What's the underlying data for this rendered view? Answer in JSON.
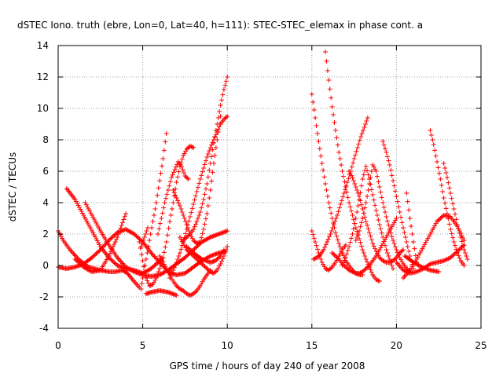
{
  "chart_data": {
    "type": "scatter",
    "title": "dSTEC Iono. truth (ebre, Lon=0, Lat=40, h=111): STEC-STEC_elemax in phase cont. a",
    "xlabel": "GPS time / hours of day 240 of year 2008",
    "ylabel": "dSTEC  / TECUs",
    "xlim": [
      0,
      25
    ],
    "ylim": [
      -4,
      14
    ],
    "xticks": [
      0,
      5,
      10,
      15,
      20,
      25
    ],
    "yticks": [
      -4,
      -2,
      0,
      2,
      4,
      6,
      8,
      10,
      12,
      14
    ],
    "grid": true,
    "marker": "plus",
    "color": "#ff0000",
    "series": [
      {
        "x": [
          0.0,
          0.3,
          0.7,
          1.2,
          1.8,
          2.5,
          3.0,
          3.4,
          3.8,
          4.1,
          4.4,
          4.8
        ],
        "y": [
          2.2,
          1.6,
          1.0,
          0.4,
          -0.1,
          -0.3,
          -0.4,
          -0.4,
          -0.3,
          -0.5,
          -0.9,
          -1.4
        ]
      },
      {
        "x": [
          0.0,
          0.5,
          1.0,
          1.5,
          2.0,
          2.5,
          3.0,
          3.5,
          4.0,
          4.5,
          5.0,
          5.5,
          6.0,
          6.5,
          7.0,
          7.5,
          8.0,
          8.5,
          9.0,
          9.5,
          9.9
        ],
        "y": [
          -0.1,
          -0.2,
          -0.1,
          0.1,
          0.5,
          1.0,
          1.6,
          2.1,
          2.3,
          2.0,
          1.5,
          0.8,
          0.2,
          -0.4,
          -0.6,
          -0.5,
          -0.1,
          0.3,
          0.6,
          0.8,
          0.9
        ]
      },
      {
        "x": [
          0.5,
          1.0,
          1.5,
          2.0,
          2.5,
          3.0,
          3.5,
          4.0,
          4.5,
          5.0,
          5.5,
          6.0,
          6.2
        ],
        "y": [
          4.9,
          4.2,
          3.2,
          2.2,
          1.2,
          0.5,
          0.0,
          -0.2,
          -0.3,
          -0.5,
          -0.2,
          0.3,
          0.5
        ]
      },
      {
        "x": [
          1.6,
          2.0,
          2.5,
          3.0,
          3.5,
          4.0,
          4.5,
          5.0,
          5.5,
          6.0,
          6.5,
          7.0,
          7.5,
          8.0,
          8.5,
          9.0,
          9.5,
          10.0
        ],
        "y": [
          4.0,
          3.2,
          2.2,
          1.3,
          0.5,
          -0.1,
          -0.4,
          -0.6,
          -0.7,
          -0.6,
          -0.3,
          0.1,
          0.5,
          1.0,
          1.5,
          1.8,
          2.0,
          2.2
        ]
      },
      {
        "x": [
          1.0,
          1.5,
          2.0,
          2.5,
          3.0,
          3.5,
          4.0
        ],
        "y": [
          0.4,
          -0.1,
          -0.4,
          -0.3,
          0.6,
          1.8,
          3.3
        ]
      },
      {
        "x": [
          4.8,
          5.0,
          5.2,
          5.4,
          5.6,
          5.8,
          6.0,
          6.2,
          6.4,
          6.6,
          6.8,
          7.0,
          7.2,
          7.4,
          7.6,
          7.8,
          8.0
        ],
        "y": [
          1.5,
          0.3,
          -0.8,
          -1.3,
          -1.2,
          -0.8,
          -0.2,
          0.5,
          1.5,
          2.8,
          4.0,
          5.3,
          6.3,
          7.0,
          7.4,
          7.6,
          7.5
        ]
      },
      {
        "x": [
          4.9,
          5.0,
          5.2,
          5.4,
          5.6,
          5.8,
          6.0,
          6.2,
          6.4
        ],
        "y": [
          -1.5,
          -0.8,
          0.4,
          1.6,
          2.8,
          4.0,
          5.4,
          6.8,
          8.4
        ]
      },
      {
        "x": [
          4.9,
          5.1,
          5.3
        ],
        "y": [
          1.2,
          1.8,
          2.4
        ]
      },
      {
        "x": [
          5.2,
          5.5,
          6.0,
          6.5,
          7.0
        ],
        "y": [
          -1.8,
          -1.7,
          -1.6,
          -1.7,
          -1.9
        ]
      },
      {
        "x": [
          5.9,
          6.1,
          6.3,
          6.5,
          6.7,
          6.9,
          7.1,
          7.3,
          7.5,
          7.7
        ],
        "y": [
          2.0,
          3.0,
          4.0,
          4.8,
          5.6,
          6.1,
          6.6,
          6.3,
          5.7,
          5.5
        ]
      },
      {
        "x": [
          6.0,
          6.2,
          6.4,
          6.6,
          6.8,
          7.0,
          7.2,
          7.4,
          7.6,
          7.8,
          8.0,
          8.2,
          8.4,
          8.6,
          8.8,
          9.0
        ],
        "y": [
          0.6,
          0.2,
          -0.2,
          -0.6,
          -1.0,
          -1.3,
          -1.5,
          -1.6,
          -1.8,
          -1.9,
          -1.8,
          -1.6,
          -1.3,
          -0.9,
          -0.6,
          -0.3
        ]
      },
      {
        "x": [
          6.6,
          6.8,
          7.0,
          7.2,
          7.4,
          7.6,
          7.8,
          8.0,
          8.2,
          8.4,
          8.6,
          8.8,
          9.0,
          9.2,
          9.4,
          9.6,
          9.8,
          10.0
        ],
        "y": [
          -0.8,
          -0.3,
          0.2,
          0.8,
          1.5,
          2.3,
          3.1,
          3.9,
          4.7,
          5.5,
          6.2,
          6.9,
          7.5,
          8.0,
          8.5,
          9.0,
          9.3,
          9.5
        ]
      },
      {
        "x": [
          6.8,
          7.0,
          7.2,
          7.4,
          7.6,
          7.8,
          8.0,
          8.2,
          8.4,
          8.6,
          8.8,
          9.0,
          9.2,
          9.4,
          9.6
        ],
        "y": [
          4.8,
          4.3,
          3.8,
          3.2,
          2.6,
          2.0,
          1.6,
          1.4,
          1.5,
          2.3,
          3.3,
          4.8,
          6.5,
          8.0,
          9.5
        ]
      },
      {
        "x": [
          7.2,
          7.4,
          7.6,
          7.8,
          8.0,
          8.2,
          8.4,
          8.6,
          8.8,
          9.0,
          9.2,
          9.4,
          9.6,
          9.8,
          10.0
        ],
        "y": [
          1.8,
          1.4,
          1.0,
          0.8,
          0.6,
          0.4,
          0.2,
          0.0,
          -0.2,
          -0.4,
          -0.5,
          -0.3,
          0.1,
          0.6,
          1.2
        ]
      },
      {
        "x": [
          7.4,
          7.6,
          7.8,
          8.0,
          8.2,
          8.4,
          8.6,
          8.8,
          9.0,
          9.2,
          9.4,
          9.6,
          9.8,
          10.0
        ],
        "y": [
          1.6,
          1.8,
          2.0,
          2.3,
          2.8,
          3.4,
          4.2,
          5.2,
          6.5,
          7.8,
          9.0,
          10.2,
          11.2,
          12.0
        ]
      },
      {
        "x": [
          7.6,
          8.0,
          8.5,
          9.0,
          9.3,
          9.6,
          9.8
        ],
        "y": [
          1.2,
          0.8,
          0.4,
          0.2,
          0.3,
          0.6,
          1.0
        ]
      },
      {
        "x": [
          15.0,
          15.2,
          15.4,
          15.6,
          15.8,
          16.0,
          16.2,
          16.4,
          16.6,
          16.8,
          17.0,
          17.2,
          17.4,
          17.6,
          17.8,
          18.0
        ],
        "y": [
          10.9,
          9.4,
          7.9,
          6.5,
          5.2,
          4.0,
          3.0,
          2.1,
          1.4,
          0.8,
          0.3,
          0.0,
          -0.3,
          -0.5,
          -0.6,
          -0.6
        ]
      },
      {
        "x": [
          15.0,
          15.2,
          15.4,
          15.6,
          15.8,
          16.0,
          16.2,
          16.4,
          16.6,
          16.8,
          17.0
        ],
        "y": [
          2.2,
          1.5,
          0.8,
          0.2,
          -0.2,
          -0.3,
          -0.1,
          0.2,
          0.6,
          1.0,
          1.3
        ]
      },
      {
        "x": [
          15.1,
          15.3,
          15.5,
          15.7,
          15.9,
          16.1,
          16.3,
          16.5,
          16.7,
          16.9,
          17.1,
          17.3,
          17.5,
          17.7,
          17.9,
          18.1,
          18.3
        ],
        "y": [
          0.4,
          0.5,
          0.7,
          1.0,
          1.5,
          2.0,
          2.6,
          3.2,
          3.9,
          4.6,
          5.3,
          6.0,
          6.8,
          7.5,
          8.2,
          8.8,
          9.4
        ]
      },
      {
        "x": [
          15.8,
          16.0,
          16.2,
          16.4,
          16.6,
          16.8,
          17.0,
          17.2,
          17.4,
          17.6,
          17.8,
          18.0,
          18.2,
          18.4,
          18.6,
          18.8,
          19.0
        ],
        "y": [
          13.6,
          11.8,
          10.1,
          8.6,
          7.2,
          6.0,
          5.0,
          4.0,
          3.2,
          2.4,
          1.7,
          1.0,
          0.4,
          -0.1,
          -0.6,
          -0.9,
          -1.0
        ]
      },
      {
        "x": [
          16.2,
          16.4,
          16.6,
          16.8,
          17.0,
          17.2,
          17.4,
          17.6,
          17.8,
          18.0,
          18.2,
          18.4,
          18.6,
          18.8,
          19.0,
          19.2,
          19.4,
          19.6,
          19.8,
          20.0
        ],
        "y": [
          0.8,
          0.6,
          0.4,
          0.1,
          -0.1,
          -0.3,
          -0.4,
          -0.5,
          -0.5,
          -0.4,
          -0.2,
          0.0,
          0.3,
          0.6,
          1.0,
          1.4,
          1.8,
          2.2,
          2.6,
          3.0
        ]
      },
      {
        "x": [
          16.8,
          17.0,
          17.2,
          17.4,
          17.6,
          17.8,
          18.0,
          18.2,
          18.4,
          18.6,
          18.8,
          19.0,
          19.2,
          19.4,
          19.6,
          19.8
        ],
        "y": [
          0.0,
          0.5,
          1.2,
          2.0,
          3.0,
          4.2,
          5.5,
          6.3,
          5.5,
          4.5,
          3.5,
          2.6,
          1.8,
          1.0,
          0.4,
          -0.2
        ]
      },
      {
        "x": [
          17.2,
          17.4,
          17.6,
          17.8,
          18.0,
          18.2,
          18.4,
          18.6,
          18.8,
          19.0,
          19.2,
          19.4,
          19.6,
          19.8,
          20.0,
          20.2,
          20.4
        ],
        "y": [
          6.0,
          5.6,
          5.0,
          4.4,
          3.6,
          2.8,
          2.1,
          1.4,
          0.9,
          0.5,
          0.3,
          0.2,
          0.2,
          0.3,
          0.5,
          0.8,
          1.0
        ]
      },
      {
        "x": [
          17.6,
          17.8,
          18.0,
          18.2,
          18.4,
          18.6,
          18.8,
          19.0,
          19.2,
          19.4,
          19.6,
          19.8,
          20.0,
          20.2,
          20.4,
          20.6,
          20.8
        ],
        "y": [
          1.6,
          2.2,
          3.0,
          4.0,
          5.2,
          6.4,
          6.0,
          5.0,
          4.0,
          3.1,
          2.3,
          1.6,
          1.0,
          0.5,
          0.1,
          -0.2,
          -0.4
        ]
      },
      {
        "x": [
          19.2,
          19.4,
          19.6,
          19.8,
          20.0,
          20.2,
          20.4,
          20.6,
          20.8,
          21.0
        ],
        "y": [
          7.9,
          7.2,
          6.4,
          5.4,
          4.4,
          3.4,
          2.4,
          1.5,
          0.6,
          -0.2
        ]
      },
      {
        "x": [
          20.0,
          20.4,
          20.8,
          21.2,
          21.6,
          22.0,
          22.4,
          22.8,
          23.2,
          23.6,
          24.0
        ],
        "y": [
          0.2,
          -0.3,
          -0.5,
          -0.4,
          -0.2,
          0.1,
          0.2,
          0.3,
          0.5,
          0.9,
          1.3
        ]
      },
      {
        "x": [
          20.4,
          20.8,
          21.2,
          21.6,
          22.0,
          22.4,
          22.8,
          23.2,
          23.6,
          24.0
        ],
        "y": [
          -0.8,
          -0.3,
          0.4,
          1.2,
          2.0,
          2.8,
          3.2,
          3.1,
          2.5,
          1.6
        ]
      },
      {
        "x": [
          20.6,
          20.8,
          21.0,
          21.2
        ],
        "y": [
          4.6,
          3.0,
          1.5,
          0.2
        ]
      },
      {
        "x": [
          22.0,
          22.2,
          22.4,
          22.6,
          22.8,
          23.0,
          23.2,
          23.4,
          23.6,
          23.8,
          24.0
        ],
        "y": [
          8.6,
          7.7,
          6.6,
          5.5,
          4.3,
          3.3,
          2.3,
          1.5,
          0.8,
          0.3,
          0.0
        ]
      },
      {
        "x": [
          22.8,
          23.0,
          23.2,
          23.4,
          23.6,
          23.8,
          24.0,
          24.2
        ],
        "y": [
          6.5,
          5.6,
          4.6,
          3.6,
          2.6,
          1.8,
          1.0,
          0.4
        ]
      },
      {
        "x": [
          20.5,
          21.0,
          21.5,
          22.0,
          22.5
        ],
        "y": [
          0.6,
          0.2,
          -0.1,
          -0.3,
          -0.4
        ]
      }
    ]
  }
}
